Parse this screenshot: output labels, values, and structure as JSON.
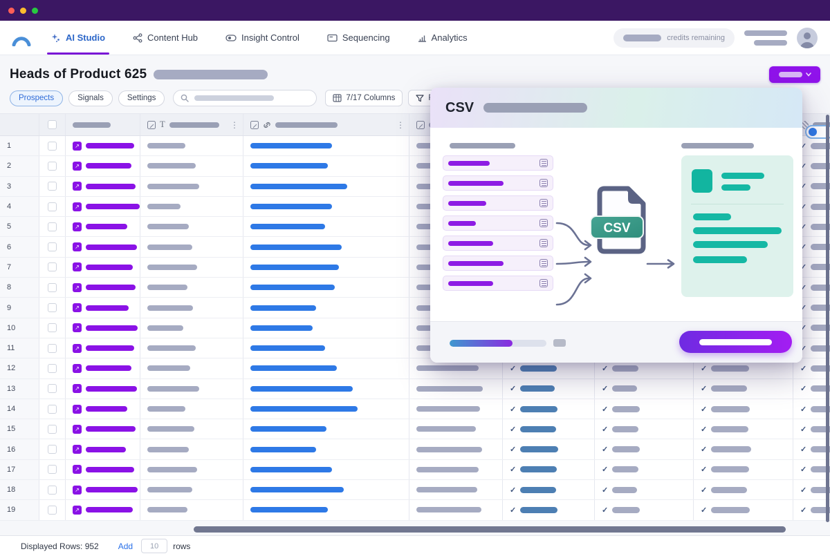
{
  "icons": {
    "kebab": "⋮",
    "check": "✓",
    "expand_glyph": "↗",
    "text_type": "T"
  },
  "colors": {
    "titlebar": "#3b1763",
    "accent_purple": "#8a12e6",
    "link_blue": "#2e79e6",
    "steel_blue": "#4d7fb3",
    "teal": "#15b8a4",
    "redact_gray": "#a6abc2"
  },
  "nav": {
    "items": [
      {
        "label": "AI Studio",
        "icon": "sparkle-icon",
        "active": true
      },
      {
        "label": "Content Hub",
        "icon": "share-icon",
        "active": false
      },
      {
        "label": "Insight Control",
        "icon": "toggle-eye-icon",
        "active": false
      },
      {
        "label": "Sequencing",
        "icon": "card-icon",
        "active": false
      },
      {
        "label": "Analytics",
        "icon": "bar-chart-icon",
        "active": false
      }
    ],
    "credits_label": "credits remaining"
  },
  "page": {
    "title": "Heads of Product 625",
    "tabs": [
      {
        "label": "Prospects",
        "active": true
      },
      {
        "label": "Signals",
        "active": false
      },
      {
        "label": "Settings",
        "active": false
      }
    ],
    "columns_button": "7/17 Columns",
    "filters_button": "Filters"
  },
  "table": {
    "row_count": 19,
    "rows": [
      [
        70,
        55,
        118,
        92,
        52,
        38,
        55,
        42
      ],
      [
        66,
        70,
        112,
        96,
        55,
        40,
        58,
        40
      ],
      [
        72,
        75,
        140,
        88,
        50,
        36,
        52,
        44
      ],
      [
        78,
        48,
        118,
        95,
        54,
        40,
        56,
        40
      ],
      [
        60,
        60,
        108,
        90,
        52,
        38,
        54,
        42
      ],
      [
        74,
        65,
        132,
        96,
        55,
        40,
        58,
        40
      ],
      [
        68,
        72,
        128,
        85,
        53,
        38,
        55,
        44
      ],
      [
        72,
        58,
        122,
        92,
        52,
        36,
        52,
        40
      ],
      [
        62,
        66,
        95,
        98,
        54,
        40,
        56,
        42
      ],
      [
        75,
        52,
        90,
        88,
        52,
        38,
        54,
        40
      ],
      [
        70,
        70,
        108,
        94,
        55,
        40,
        58,
        44
      ],
      [
        66,
        62,
        125,
        90,
        53,
        38,
        55,
        40
      ],
      [
        74,
        75,
        148,
        96,
        50,
        36,
        52,
        42
      ],
      [
        60,
        55,
        155,
        92,
        54,
        40,
        56,
        40
      ],
      [
        72,
        68,
        110,
        86,
        52,
        38,
        54,
        44
      ],
      [
        58,
        60,
        95,
        95,
        55,
        40,
        58,
        40
      ],
      [
        70,
        72,
        118,
        90,
        53,
        38,
        55,
        42
      ],
      [
        75,
        65,
        135,
        88,
        52,
        36,
        52,
        40
      ],
      [
        68,
        58,
        112,
        94,
        54,
        40,
        56,
        42
      ]
    ]
  },
  "modal": {
    "title": "CSV",
    "file_badge": "CSV",
    "field_widths": [
      60,
      80,
      55,
      40,
      65,
      80,
      65
    ]
  },
  "footer": {
    "displayed_rows_label": "Displayed Rows: 952",
    "add_label": "Add",
    "rows_value": "10",
    "rows_label": "rows"
  }
}
